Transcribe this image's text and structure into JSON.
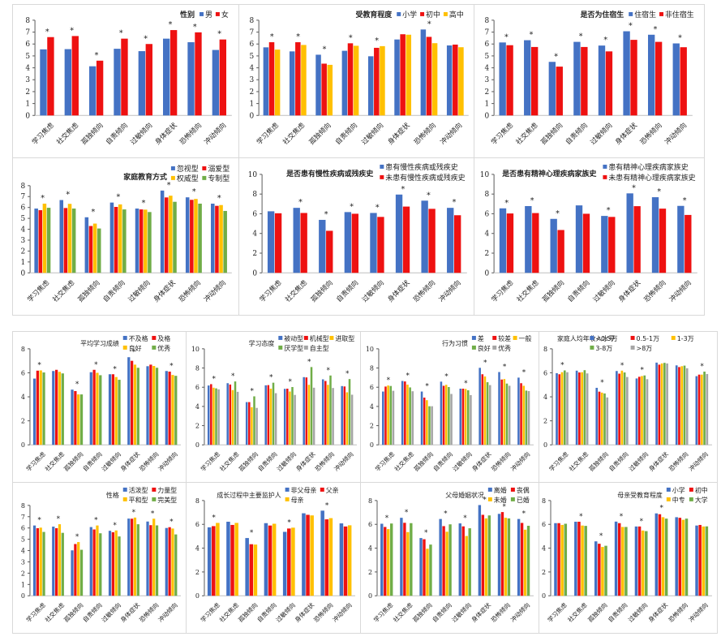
{
  "colors": {
    "blue": "#4472c4",
    "red": "#ee1111",
    "yellow": "#ffc000",
    "green": "#70ad47",
    "gray": "#a5a5a5",
    "axis": "#595959",
    "grid_border": "#d9d9d9"
  },
  "categories": [
    "学习焦虑",
    "社交焦虑",
    "孤独倾向",
    "自责倾向",
    "过敏倾向",
    "身体症状",
    "恐怖倾向",
    "冲动倾向"
  ],
  "significance_marker": "*",
  "chart_data": [
    {
      "id": "gender",
      "type": "bar",
      "title": "性别",
      "ylim": [
        0,
        8
      ],
      "ticks": [
        0,
        1,
        2,
        3,
        4,
        5,
        6,
        7,
        8
      ],
      "series": [
        {
          "name": "男",
          "color": "#4472c4",
          "values": [
            5.55,
            5.57,
            4.13,
            5.6,
            5.4,
            6.45,
            6.15,
            5.5
          ]
        },
        {
          "name": "女",
          "color": "#ee1111",
          "values": [
            6.58,
            6.67,
            4.6,
            6.45,
            6.0,
            7.17,
            6.98,
            6.38
          ]
        }
      ],
      "significant": [
        true,
        true,
        true,
        true,
        true,
        true,
        true,
        true
      ]
    },
    {
      "id": "education",
      "type": "bar",
      "title": "受教育程度",
      "ylim": [
        0,
        8
      ],
      "ticks": [
        0,
        1,
        2,
        3,
        4,
        5,
        6,
        7,
        8
      ],
      "series": [
        {
          "name": "小学",
          "color": "#4472c4",
          "values": [
            5.72,
            5.38,
            5.1,
            5.43,
            4.97,
            6.38,
            7.22,
            5.88
          ]
        },
        {
          "name": "初中",
          "color": "#ee1111",
          "values": [
            6.15,
            6.15,
            4.35,
            6.06,
            5.68,
            6.82,
            6.6,
            5.95
          ]
        },
        {
          "name": "高中",
          "color": "#ffc000",
          "values": [
            5.53,
            5.92,
            4.25,
            5.85,
            5.82,
            6.78,
            6.07,
            5.73
          ]
        }
      ],
      "significant": [
        true,
        true,
        true,
        true,
        true,
        false,
        true,
        false
      ]
    },
    {
      "id": "boarding",
      "type": "bar",
      "title": "是否为住宿生",
      "ylim": [
        0,
        8
      ],
      "ticks": [
        0,
        1,
        2,
        3,
        4,
        5,
        6,
        7,
        8
      ],
      "series": [
        {
          "name": "住宿生",
          "color": "#4472c4",
          "values": [
            6.13,
            6.32,
            4.5,
            6.18,
            5.87,
            7.07,
            6.78,
            6.05
          ]
        },
        {
          "name": "非住宿生",
          "color": "#ee1111",
          "values": [
            5.9,
            5.75,
            4.1,
            5.75,
            5.38,
            6.35,
            6.18,
            5.73
          ]
        }
      ],
      "significant": [
        true,
        true,
        true,
        true,
        true,
        true,
        true,
        true
      ]
    },
    {
      "id": "family_style",
      "type": "bar",
      "title": "家庭教育方式",
      "ylim": [
        0,
        8
      ],
      "ticks": [
        0,
        1,
        2,
        3,
        4,
        5,
        6,
        7,
        8
      ],
      "series": [
        {
          "name": "忽视型",
          "color": "#4472c4",
          "values": [
            5.9,
            6.68,
            5.1,
            6.45,
            5.9,
            7.55,
            6.93,
            6.35
          ]
        },
        {
          "name": "溺爱型",
          "color": "#ee1111",
          "values": [
            5.75,
            5.95,
            4.3,
            6.05,
            5.82,
            6.92,
            6.7,
            6.15
          ]
        },
        {
          "name": "权威型",
          "color": "#ffc000",
          "values": [
            6.35,
            6.33,
            4.52,
            6.28,
            5.8,
            7.08,
            6.78,
            6.22
          ]
        },
        {
          "name": "专制型",
          "color": "#70ad47",
          "values": [
            5.97,
            5.9,
            4.07,
            5.82,
            5.58,
            6.52,
            6.35,
            5.68
          ]
        }
      ],
      "significant": [
        true,
        true,
        true,
        true,
        true,
        true,
        true,
        true
      ]
    },
    {
      "id": "chronic",
      "type": "bar",
      "title": "是否患有慢性疾病或残疾史",
      "ylim": [
        0,
        10
      ],
      "ticks": [
        0,
        2,
        4,
        6,
        8,
        10
      ],
      "series": [
        {
          "name": "患有慢性疾病或残疾史",
          "color": "#4472c4",
          "values": [
            6.25,
            6.6,
            5.38,
            6.17,
            6.08,
            7.95,
            7.33,
            6.6
          ]
        },
        {
          "name": "未患有慢性疾病或残疾史",
          "color": "#ee1111",
          "values": [
            6.05,
            6.08,
            4.27,
            6.0,
            5.68,
            6.73,
            6.5,
            5.85
          ]
        }
      ],
      "significant": [
        false,
        true,
        true,
        true,
        true,
        true,
        true,
        true
      ]
    },
    {
      "id": "mental_family",
      "type": "bar",
      "title": "是否患有精神心理疾病家族史",
      "ylim": [
        0,
        10
      ],
      "ticks": [
        0,
        2,
        4,
        6,
        8,
        10
      ],
      "series": [
        {
          "name": "患有精神心理疾病家族史",
          "color": "#4472c4",
          "values": [
            6.55,
            6.78,
            5.48,
            6.85,
            5.78,
            8.07,
            7.68,
            6.8
          ]
        },
        {
          "name": "未患有精神心理疾病家族史",
          "color": "#ee1111",
          "values": [
            6.03,
            6.07,
            4.35,
            6.0,
            5.68,
            6.77,
            6.52,
            5.88
          ]
        }
      ],
      "significant": [
        true,
        true,
        true,
        false,
        true,
        true,
        true,
        true
      ]
    },
    {
      "id": "grades",
      "type": "bar",
      "title": "平均学习成绩",
      "ylim": [
        0,
        8
      ],
      "ticks": [
        0,
        2,
        4,
        6,
        8
      ],
      "series": [
        {
          "name": "不及格",
          "color": "#4472c4",
          "values": [
            5.52,
            6.15,
            4.6,
            6.05,
            5.88,
            7.3,
            6.55,
            6.15
          ]
        },
        {
          "name": "及格",
          "color": "#ee1111",
          "values": [
            6.18,
            6.25,
            4.48,
            6.25,
            5.88,
            7.0,
            6.68,
            6.1
          ]
        },
        {
          "name": "良好",
          "color": "#ffc000",
          "values": [
            6.2,
            6.08,
            4.2,
            6.0,
            5.65,
            6.68,
            6.57,
            5.82
          ]
        },
        {
          "name": "优秀",
          "color": "#70ad47",
          "values": [
            6.03,
            5.95,
            4.2,
            5.8,
            5.42,
            6.42,
            6.42,
            5.75
          ]
        }
      ],
      "significant": [
        true,
        false,
        true,
        true,
        true,
        true,
        false,
        true
      ]
    },
    {
      "id": "attitude",
      "type": "bar",
      "title": "学习态度",
      "ylim": [
        0,
        10
      ],
      "ticks": [
        0,
        2,
        4,
        6,
        8,
        10
      ],
      "series": [
        {
          "name": "被动型",
          "color": "#4472c4",
          "values": [
            6.18,
            6.42,
            4.45,
            6.2,
            5.83,
            7.05,
            6.82,
            6.12
          ]
        },
        {
          "name": "机械型",
          "color": "#ee1111",
          "values": [
            6.32,
            6.28,
            4.45,
            6.22,
            5.85,
            7.02,
            6.65,
            6.08
          ]
        },
        {
          "name": "进取型",
          "color": "#ffc000",
          "values": [
            5.95,
            5.7,
            3.92,
            5.85,
            5.55,
            6.25,
            6.25,
            5.47
          ]
        },
        {
          "name": "厌学型",
          "color": "#70ad47",
          "values": [
            5.88,
            6.6,
            5.05,
            6.47,
            6.02,
            8.1,
            7.22,
            6.85
          ]
        },
        {
          "name": "自主型",
          "color": "#a5a5a5",
          "values": [
            5.78,
            5.52,
            3.85,
            5.38,
            5.2,
            5.95,
            5.92,
            5.22
          ]
        }
      ],
      "significant": [
        true,
        true,
        true,
        true,
        true,
        true,
        true,
        true
      ]
    },
    {
      "id": "habits",
      "type": "bar",
      "title": "行为习惯",
      "ylim": [
        0,
        10
      ],
      "ticks": [
        0,
        2,
        4,
        6,
        8,
        10
      ],
      "series": [
        {
          "name": "差",
          "color": "#4472c4",
          "values": [
            5.55,
            6.65,
            5.55,
            6.58,
            5.85,
            8.02,
            7.58,
            7.0
          ]
        },
        {
          "name": "较差",
          "color": "#ee1111",
          "values": [
            6.07,
            6.6,
            4.92,
            6.15,
            5.85,
            7.35,
            6.8,
            6.42
          ]
        },
        {
          "name": "一般",
          "color": "#ffc000",
          "values": [
            6.18,
            6.27,
            4.65,
            6.25,
            5.82,
            7.12,
            6.85,
            6.15
          ]
        },
        {
          "name": "良好",
          "color": "#70ad47",
          "values": [
            6.13,
            5.98,
            4.02,
            6.02,
            5.68,
            6.52,
            6.38,
            5.65
          ]
        },
        {
          "name": "优秀",
          "color": "#a5a5a5",
          "values": [
            5.63,
            5.58,
            4.02,
            5.3,
            5.18,
            6.22,
            6.15,
            5.6
          ]
        }
      ],
      "significant": [
        true,
        true,
        true,
        true,
        true,
        true,
        true,
        true
      ]
    },
    {
      "id": "income",
      "type": "bar",
      "title": "家庭人均年收入水平",
      "ylim": [
        0,
        8
      ],
      "ticks": [
        0,
        2,
        4,
        6,
        8
      ],
      "series": [
        {
          "name": "<0.5万",
          "color": "#4472c4",
          "values": [
            5.97,
            6.18,
            4.75,
            6.15,
            5.53,
            6.85,
            6.62,
            5.72
          ]
        },
        {
          "name": "0.5-1万",
          "color": "#ee1111",
          "values": [
            5.88,
            6.03,
            4.43,
            5.93,
            5.67,
            6.68,
            6.48,
            5.85
          ]
        },
        {
          "name": "1-3万",
          "color": "#ffc000",
          "values": [
            6.05,
            6.05,
            4.35,
            6.18,
            5.73,
            6.78,
            6.55,
            5.85
          ]
        },
        {
          "name": "3-8万",
          "color": "#70ad47",
          "values": [
            6.2,
            6.22,
            4.28,
            6.03,
            5.78,
            6.83,
            6.6,
            6.1
          ]
        },
        {
          "name": ">8万",
          "color": "#a5a5a5",
          "values": [
            6.05,
            5.95,
            3.95,
            5.65,
            5.47,
            6.78,
            6.38,
            5.9
          ]
        }
      ],
      "significant": [
        true,
        false,
        true,
        true,
        true,
        false,
        false,
        true
      ]
    },
    {
      "id": "personality",
      "type": "bar",
      "title": "性格",
      "ylim": [
        0,
        8
      ],
      "ticks": [
        0,
        1,
        2,
        3,
        4,
        5,
        6,
        7,
        8
      ],
      "series": [
        {
          "name": "活泼型",
          "color": "#4472c4",
          "values": [
            6.22,
            6.12,
            4.02,
            6.08,
            5.75,
            6.83,
            6.57,
            6.0
          ]
        },
        {
          "name": "力量型",
          "color": "#ee1111",
          "values": [
            5.98,
            5.98,
            4.58,
            5.87,
            5.62,
            6.82,
            6.25,
            6.07
          ]
        },
        {
          "name": "平和型",
          "color": "#ffc000",
          "values": [
            6.03,
            6.33,
            4.75,
            6.22,
            5.78,
            6.92,
            6.82,
            5.95
          ]
        },
        {
          "name": "完美型",
          "color": "#70ad47",
          "values": [
            5.65,
            5.57,
            4.07,
            5.53,
            5.25,
            6.33,
            6.23,
            5.43
          ]
        }
      ],
      "significant": [
        true,
        true,
        true,
        true,
        true,
        true,
        true,
        true
      ]
    },
    {
      "id": "guardian",
      "type": "bar",
      "title": "成长过程中主要监护人",
      "ylim": [
        0,
        8
      ],
      "ticks": [
        0,
        2,
        4,
        6,
        8
      ],
      "series": [
        {
          "name": "非父母亲",
          "color": "#4472c4",
          "values": [
            5.75,
            6.22,
            4.85,
            6.1,
            5.37,
            6.93,
            7.15,
            6.08
          ]
        },
        {
          "name": "父亲",
          "color": "#ee1111",
          "values": [
            5.85,
            5.95,
            4.33,
            5.9,
            5.65,
            6.8,
            6.42,
            5.82
          ]
        },
        {
          "name": "母亲",
          "color": "#ffc000",
          "values": [
            6.12,
            6.12,
            4.3,
            6.05,
            5.72,
            6.75,
            6.52,
            5.92
          ]
        }
      ],
      "significant": [
        true,
        false,
        true,
        false,
        true,
        false,
        true,
        false
      ]
    },
    {
      "id": "marital",
      "type": "bar",
      "title": "父母婚姻状况",
      "ylim": [
        0,
        8
      ],
      "ticks": [
        0,
        2,
        4,
        6,
        8
      ],
      "series": [
        {
          "name": "离婚",
          "color": "#4472c4",
          "values": [
            6.05,
            6.55,
            4.85,
            6.45,
            6.08,
            7.62,
            6.88,
            6.45
          ]
        },
        {
          "name": "丧偶",
          "color": "#ee1111",
          "values": [
            5.78,
            6.13,
            4.75,
            5.85,
            5.83,
            6.8,
            7.03,
            6.12
          ]
        },
        {
          "name": "未婚",
          "color": "#ffc000",
          "values": [
            5.6,
            5.35,
            3.95,
            5.38,
            5.02,
            6.5,
            6.55,
            5.55
          ]
        },
        {
          "name": "已婚",
          "color": "#70ad47",
          "values": [
            6.07,
            6.1,
            4.3,
            6.0,
            5.67,
            6.75,
            6.5,
            5.88
          ]
        }
      ],
      "significant": [
        true,
        true,
        true,
        true,
        true,
        true,
        true,
        true
      ]
    },
    {
      "id": "mother_edu",
      "type": "bar",
      "title": "母亲受教育程度",
      "ylim": [
        0,
        8
      ],
      "ticks": [
        0,
        2,
        4,
        6,
        8
      ],
      "series": [
        {
          "name": "小学",
          "color": "#4472c4",
          "values": [
            6.1,
            6.22,
            4.57,
            6.23,
            5.82,
            6.92,
            6.6,
            5.9
          ]
        },
        {
          "name": "初中",
          "color": "#ee1111",
          "values": [
            6.1,
            6.22,
            4.37,
            6.1,
            5.82,
            6.85,
            6.55,
            5.95
          ]
        },
        {
          "name": "中专",
          "color": "#ffc000",
          "values": [
            5.95,
            5.9,
            4.1,
            5.78,
            5.48,
            6.6,
            6.38,
            5.82
          ]
        },
        {
          "name": "大学",
          "color": "#70ad47",
          "values": [
            6.05,
            5.87,
            4.2,
            5.78,
            5.43,
            6.48,
            6.48,
            5.83
          ]
        }
      ],
      "significant": [
        false,
        true,
        true,
        true,
        true,
        true,
        false,
        false
      ]
    }
  ]
}
